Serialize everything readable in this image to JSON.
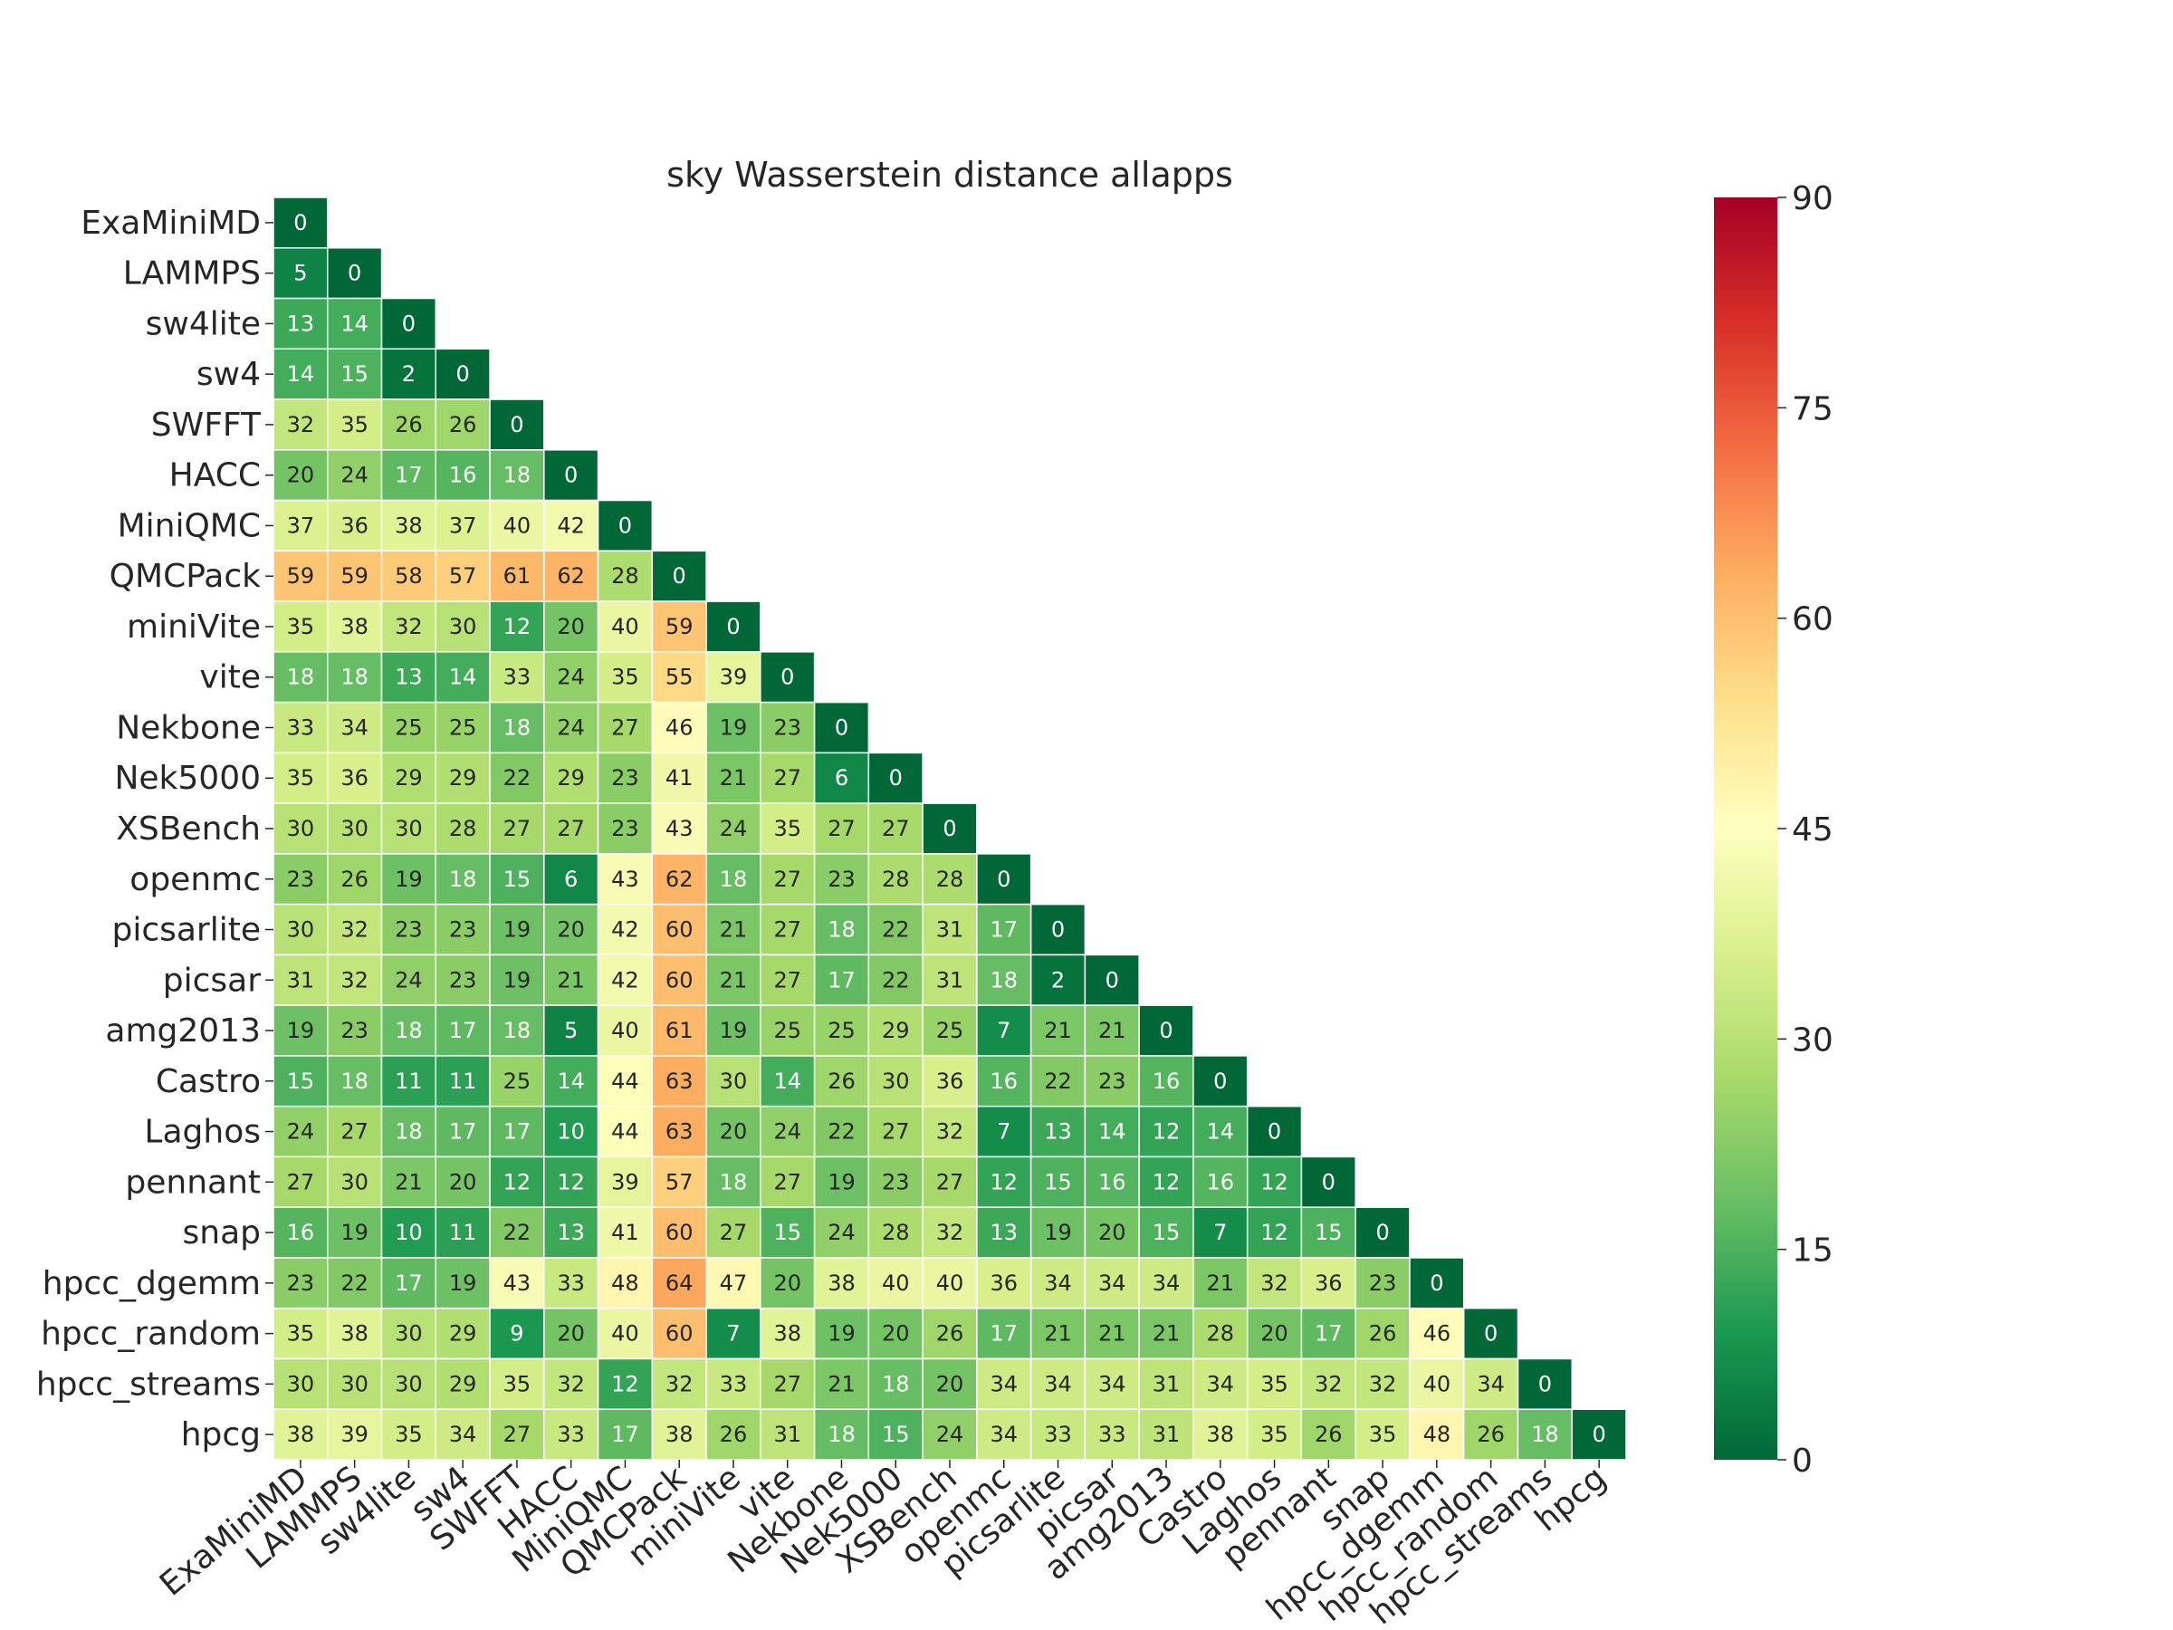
{
  "chart_data": {
    "type": "heatmap",
    "title": "sky Wasserstein distance allapps",
    "labels": [
      "ExaMiniMD",
      "LAMMPS",
      "sw4lite",
      "sw4",
      "SWFFT",
      "HACC",
      "MiniQMC",
      "QMCPack",
      "miniVite",
      "vite",
      "Nekbone",
      "Nek5000",
      "XSBench",
      "openmc",
      "picsarlite",
      "picsar",
      "amg2013",
      "Castro",
      "Laghos",
      "pennant",
      "snap",
      "hpcc_dgemm",
      "hpcc_random",
      "hpcc_streams",
      "hpcg"
    ],
    "matrix_lower_triangle": [
      [
        0
      ],
      [
        5,
        0
      ],
      [
        13,
        14,
        0
      ],
      [
        14,
        15,
        2,
        0
      ],
      [
        32,
        35,
        26,
        26,
        0
      ],
      [
        20,
        24,
        17,
        16,
        18,
        0
      ],
      [
        37,
        36,
        38,
        37,
        40,
        42,
        0
      ],
      [
        59,
        59,
        58,
        57,
        61,
        62,
        28,
        0
      ],
      [
        35,
        38,
        32,
        30,
        12,
        20,
        40,
        59,
        0
      ],
      [
        18,
        18,
        13,
        14,
        33,
        24,
        35,
        55,
        39,
        0
      ],
      [
        33,
        34,
        25,
        25,
        18,
        24,
        27,
        46,
        19,
        23,
        0
      ],
      [
        35,
        36,
        29,
        29,
        22,
        29,
        23,
        41,
        21,
        27,
        6,
        0
      ],
      [
        30,
        30,
        30,
        28,
        27,
        27,
        23,
        43,
        24,
        35,
        27,
        27,
        0
      ],
      [
        23,
        26,
        19,
        18,
        15,
        6,
        43,
        62,
        18,
        27,
        23,
        28,
        28,
        0
      ],
      [
        30,
        32,
        23,
        23,
        19,
        20,
        42,
        60,
        21,
        27,
        18,
        22,
        31,
        17,
        0
      ],
      [
        31,
        32,
        24,
        23,
        19,
        21,
        42,
        60,
        21,
        27,
        17,
        22,
        31,
        18,
        2,
        0
      ],
      [
        19,
        23,
        18,
        17,
        18,
        5,
        40,
        61,
        19,
        25,
        25,
        29,
        25,
        7,
        21,
        21,
        0
      ],
      [
        15,
        18,
        11,
        11,
        25,
        14,
        44,
        63,
        30,
        14,
        26,
        30,
        36,
        16,
        22,
        23,
        16,
        0
      ],
      [
        24,
        27,
        18,
        17,
        17,
        10,
        44,
        63,
        20,
        24,
        22,
        27,
        32,
        7,
        13,
        14,
        12,
        14,
        0
      ],
      [
        27,
        30,
        21,
        20,
        12,
        12,
        39,
        57,
        18,
        27,
        19,
        23,
        27,
        12,
        15,
        16,
        12,
        16,
        12,
        0
      ],
      [
        16,
        19,
        10,
        11,
        22,
        13,
        41,
        60,
        27,
        15,
        24,
        28,
        32,
        13,
        19,
        20,
        15,
        7,
        12,
        15,
        0
      ],
      [
        23,
        22,
        17,
        19,
        43,
        33,
        48,
        64,
        47,
        20,
        38,
        40,
        40,
        36,
        34,
        34,
        34,
        21,
        32,
        36,
        23,
        0
      ],
      [
        35,
        38,
        30,
        29,
        9,
        20,
        40,
        60,
        7,
        38,
        19,
        20,
        26,
        17,
        21,
        21,
        21,
        28,
        20,
        17,
        26,
        46,
        0
      ],
      [
        30,
        30,
        30,
        29,
        35,
        32,
        12,
        32,
        33,
        27,
        21,
        18,
        20,
        34,
        34,
        34,
        31,
        34,
        35,
        32,
        32,
        40,
        34,
        0
      ],
      [
        38,
        39,
        35,
        34,
        27,
        33,
        17,
        38,
        26,
        31,
        18,
        15,
        24,
        34,
        33,
        33,
        31,
        38,
        35,
        26,
        35,
        48,
        26,
        18,
        0
      ]
    ],
    "colormap": "RdYlGn_r",
    "vmin": 0,
    "vmax": 90,
    "colorbar_ticks": [
      0,
      15,
      30,
      45,
      60,
      75,
      90
    ],
    "annotated": true,
    "mask": "upper-triangle"
  }
}
